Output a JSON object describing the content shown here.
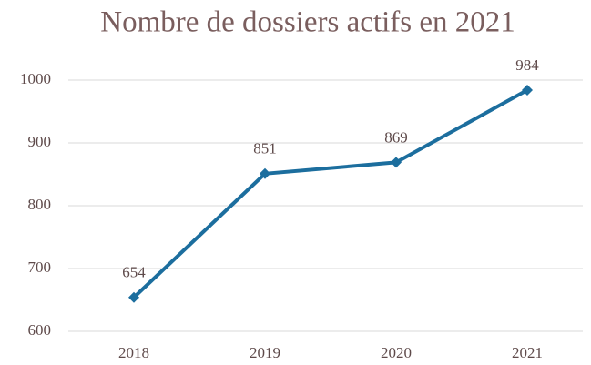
{
  "chart_data": {
    "type": "line",
    "title": "Nombre de dossiers actifs en 2021",
    "categories": [
      "2018",
      "2019",
      "2020",
      "2021"
    ],
    "values": [
      654,
      851,
      869,
      984
    ],
    "color": "#1c6e9e",
    "ylim": [
      600,
      1000
    ],
    "yticks": [
      600,
      700,
      800,
      900,
      1000
    ],
    "grid": true
  }
}
